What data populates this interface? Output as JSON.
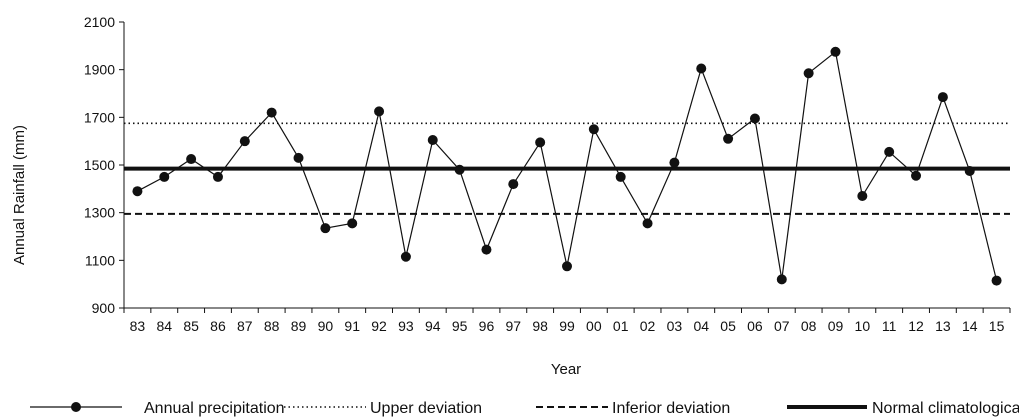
{
  "chart_data": {
    "type": "line",
    "title": "",
    "xlabel": "Year",
    "ylabel": "Annual Rainfall (mm)",
    "ylim": [
      900,
      2100
    ],
    "yticks": [
      900,
      1100,
      1300,
      1500,
      1700,
      1900,
      2100
    ],
    "grid": false,
    "legend_position": "bottom",
    "categories": [
      "83",
      "84",
      "85",
      "86",
      "87",
      "88",
      "89",
      "90",
      "91",
      "92",
      "93",
      "94",
      "95",
      "96",
      "97",
      "98",
      "99",
      "00",
      "01",
      "02",
      "03",
      "04",
      "05",
      "06",
      "07",
      "08",
      "09",
      "10",
      "11",
      "12",
      "13",
      "14",
      "15"
    ],
    "series": [
      {
        "name": "Annual precipitation",
        "style": "solid-markers",
        "values": [
          1390,
          1450,
          1525,
          1450,
          1600,
          1720,
          1530,
          1235,
          1255,
          1725,
          1115,
          1605,
          1480,
          1145,
          1420,
          1595,
          1075,
          1650,
          1450,
          1255,
          1510,
          1905,
          1610,
          1695,
          1020,
          1885,
          1975,
          1370,
          1555,
          1455,
          1785,
          1475,
          1015
        ]
      },
      {
        "name": "Upper deviation",
        "style": "dotted",
        "constant": 1675
      },
      {
        "name": "Inferior deviation",
        "style": "dashed",
        "constant": 1295
      },
      {
        "name": "Normal climatological",
        "style": "thick-solid",
        "constant": 1485
      }
    ]
  }
}
